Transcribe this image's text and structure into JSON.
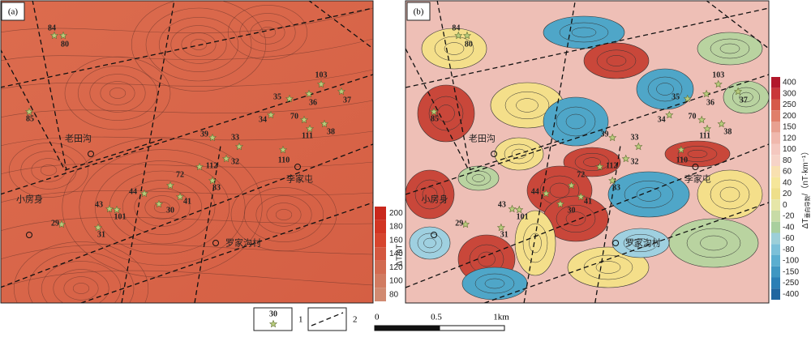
{
  "panels": [
    {
      "label": "(a)",
      "points": [
        "84",
        "80",
        "85",
        "35",
        "103",
        "36",
        "37",
        "34",
        "70",
        "111",
        "38",
        "39",
        "33",
        "112",
        "32",
        "110",
        "72",
        "83",
        "44",
        "41",
        "30",
        "43",
        "101",
        "31",
        "29"
      ],
      "places": [
        "老田沟",
        "小房身",
        "罗家沟村",
        "李家屯"
      ],
      "colorbar": {
        "title": "ΔT/nT",
        "labels": [
          "200",
          "180",
          "160",
          "140",
          "120",
          "100",
          "80"
        ]
      }
    },
    {
      "label": "(b)",
      "points": [
        "84",
        "80",
        "85",
        "35",
        "103",
        "36",
        "37",
        "34",
        "70",
        "111",
        "38",
        "39",
        "33",
        "112",
        "32",
        "110",
        "72",
        "83",
        "44",
        "41",
        "30",
        "43",
        "101",
        "31",
        "29"
      ],
      "places": [
        "老田沟",
        "小房身",
        "罗家沟村",
        "李家屯"
      ],
      "colorbar": {
        "title": "ΔT",
        "subscript": "垂向导数",
        "unit": "/（nT·km⁻¹）",
        "labels": [
          "400",
          "300",
          "250",
          "200",
          "150",
          "120",
          "100",
          "80",
          "60",
          "40",
          "20",
          "0",
          "-20",
          "-40",
          "-60",
          "-80",
          "-100",
          "-150",
          "-250",
          "-400"
        ]
      }
    }
  ],
  "legend": {
    "sample": "30",
    "items": [
      "1",
      "2"
    ]
  },
  "scale_bar": {
    "labels": [
      "0",
      "0.5",
      "1km"
    ]
  }
}
